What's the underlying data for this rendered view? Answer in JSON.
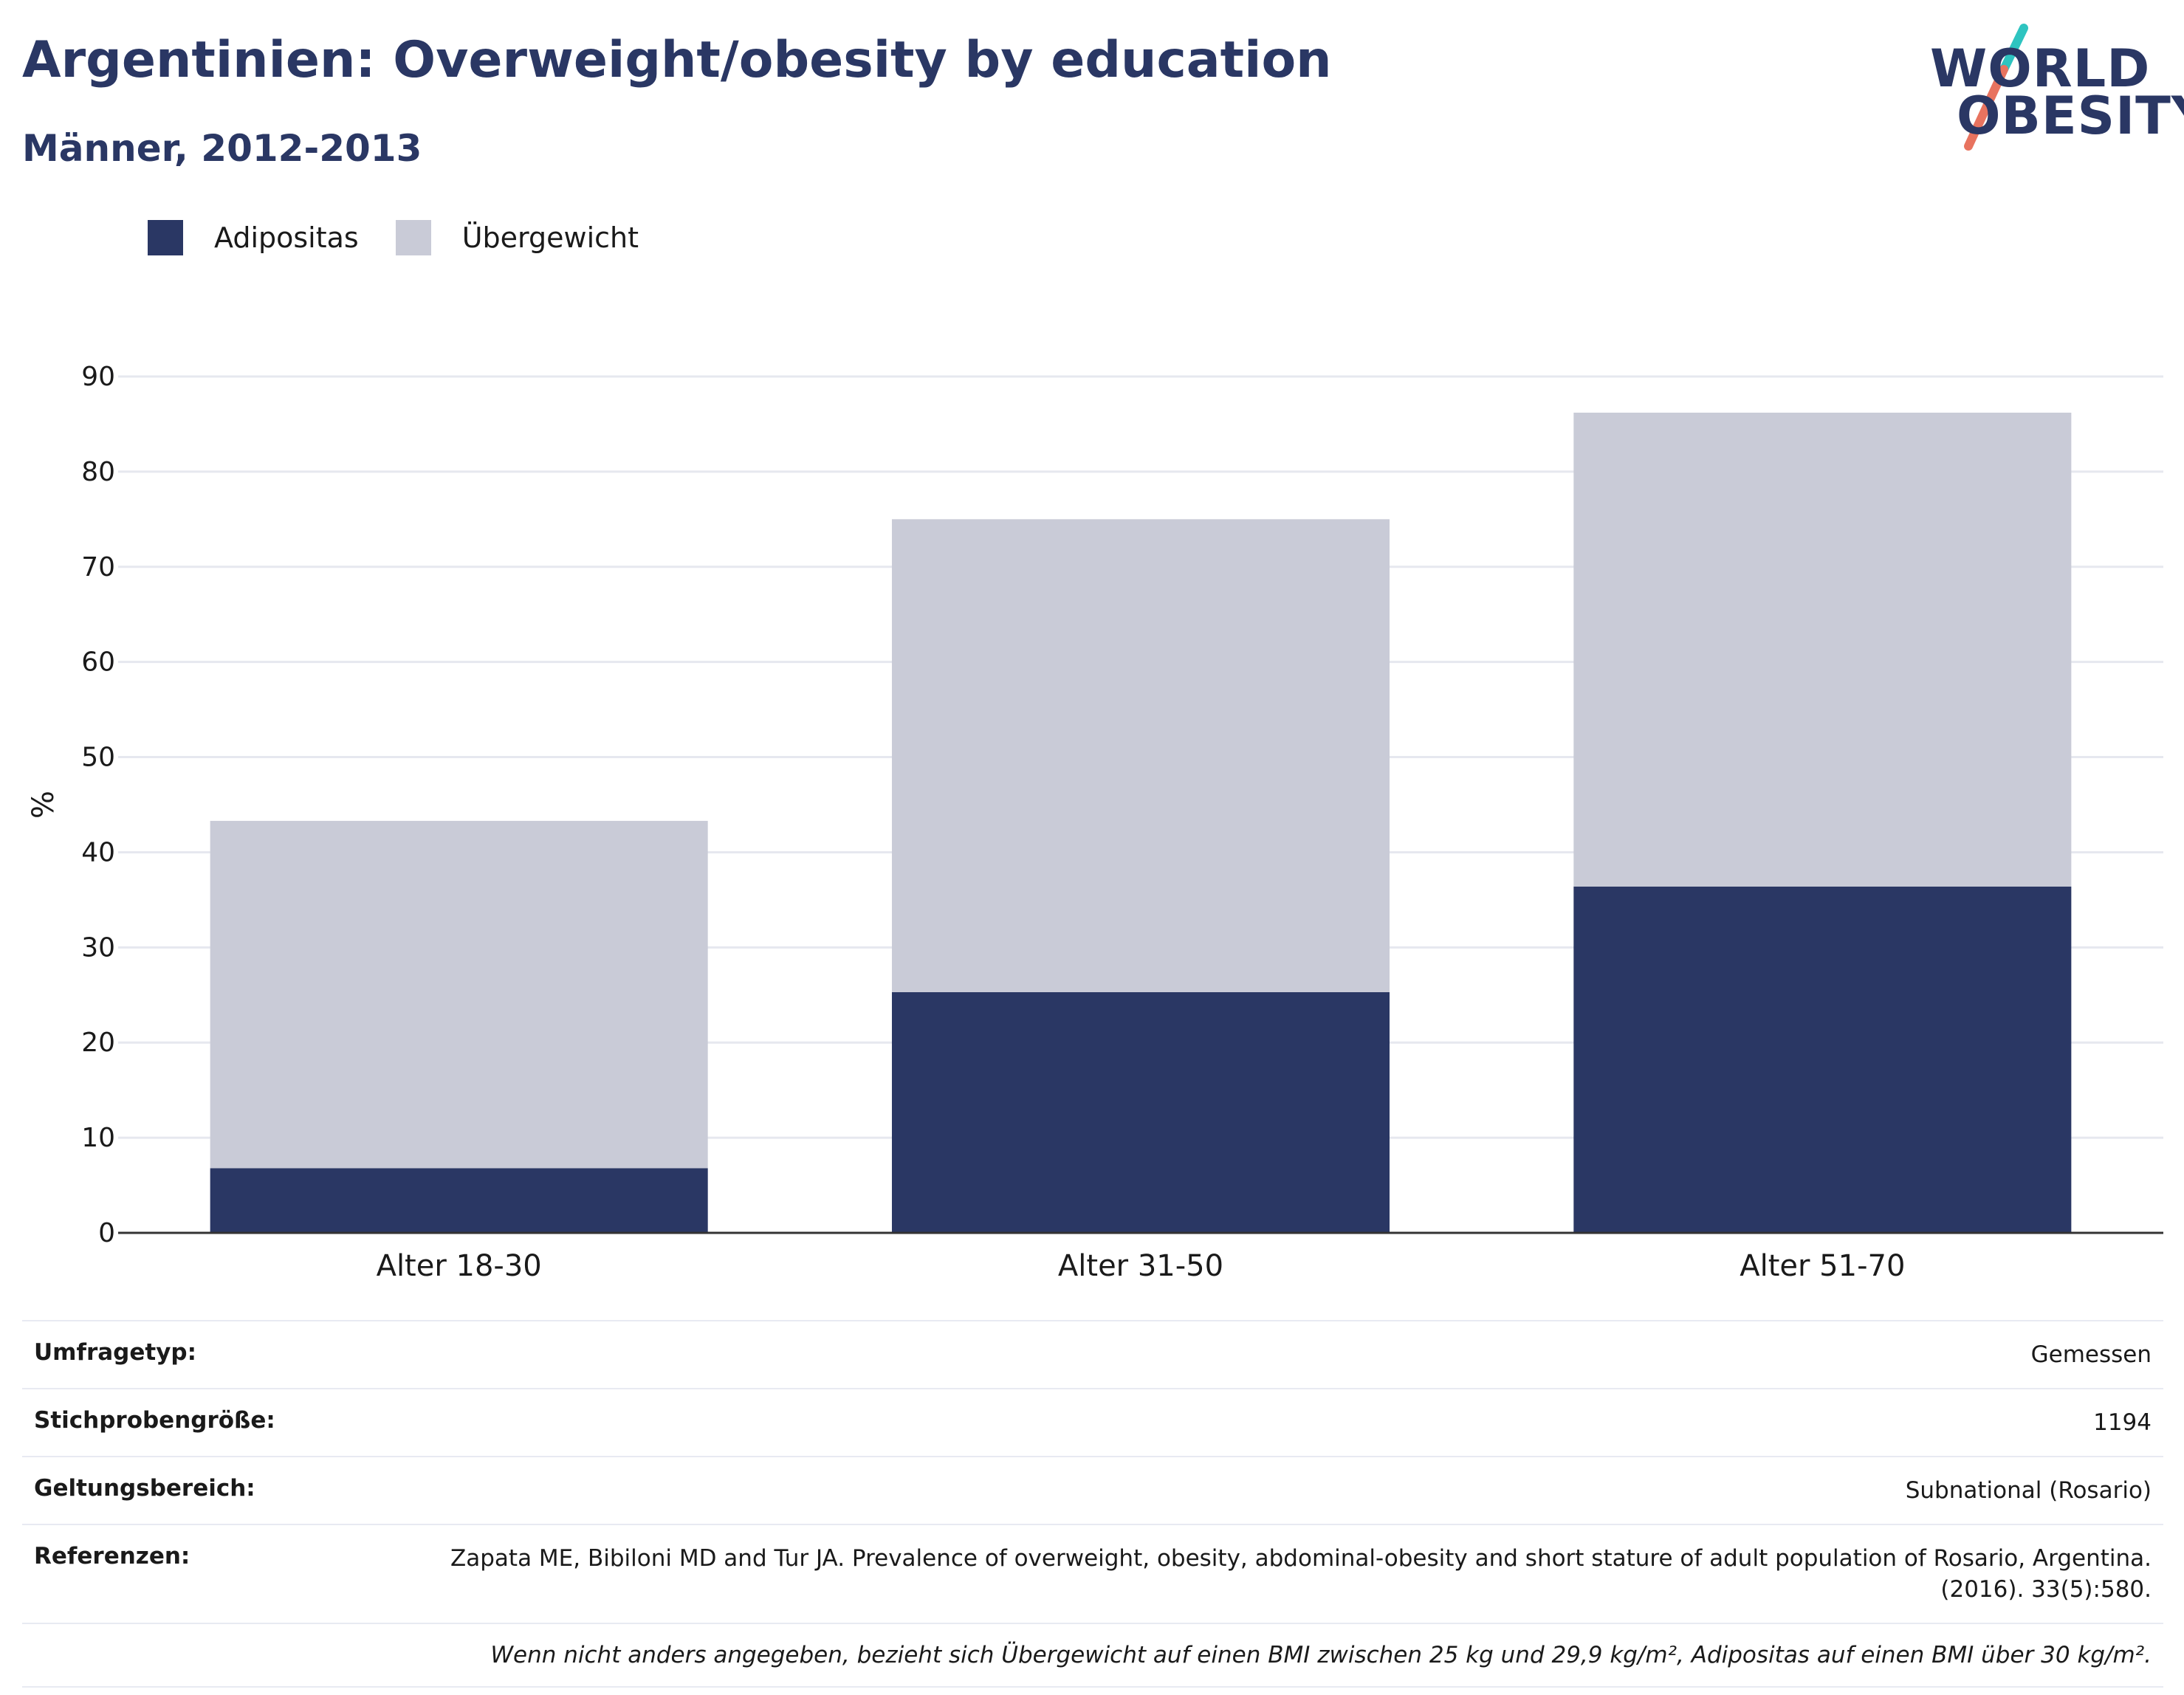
{
  "header": {
    "title": "Argentinien: Overweight/obesity by education",
    "subtitle": "Männer, 2012-2013",
    "logo_line1": "WORLD",
    "logo_line2": "OBESITY"
  },
  "colors": {
    "obesity": "#2a3764",
    "overweight": "#c9cbd7",
    "grid": "#e6e8ef",
    "axis": "#333333",
    "logo_teal": "#2ec4c0",
    "logo_coral": "#e8735f"
  },
  "legend": [
    {
      "label": "Adipositas",
      "color": "#2a3764"
    },
    {
      "label": "Übergewicht",
      "color": "#c9cbd7"
    }
  ],
  "chart_data": {
    "type": "bar",
    "stacked": true,
    "categories": [
      "Alter 18-30",
      "Alter 31-50",
      "Alter 51-70"
    ],
    "series": [
      {
        "name": "Adipositas",
        "values": [
          6.8,
          25.3,
          36.4
        ]
      },
      {
        "name": "Übergewicht",
        "values": [
          36.5,
          49.7,
          49.8
        ]
      }
    ],
    "ylabel": "%",
    "xlabel": "",
    "ylim": [
      0,
      90
    ],
    "yticks": [
      0,
      10,
      20,
      30,
      40,
      50,
      60,
      70,
      80,
      90
    ],
    "grid": true,
    "legend_position": "top-left"
  },
  "info": {
    "rows": [
      {
        "key": "Umfragetyp:",
        "value": "Gemessen"
      },
      {
        "key": "Stichprobengröße:",
        "value": "1194"
      },
      {
        "key": "Geltungsbereich:",
        "value": "Subnational (Rosario)"
      },
      {
        "key": "Referenzen:",
        "value": "Zapata ME, Bibiloni MD and Tur JA. Prevalence of overweight, obesity, abdominal-obesity and short stature of adult population of Rosario, Argentina. (2016). 33(5):580."
      }
    ],
    "note": "Wenn nicht anders angegeben, bezieht sich Übergewicht auf einen BMI zwischen 25 kg und 29,9 kg/m², Adipositas auf einen BMI über 30 kg/m²."
  }
}
